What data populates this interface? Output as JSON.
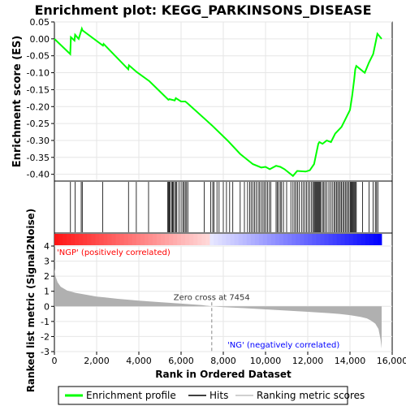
{
  "chart_data": {
    "type": "line",
    "title": "Enrichment plot: KEGG_PARKINSONS_DISEASE",
    "es_panel": {
      "ylabel": "Enrichment score (ES)",
      "ylim": [
        -0.42,
        0.05
      ],
      "yticks": [
        "0.05",
        "0.00",
        "-0.05",
        "-0.10",
        "-0.15",
        "-0.20",
        "-0.25",
        "-0.30",
        "-0.35",
        "-0.40"
      ],
      "ytick_values": [
        0.05,
        0.0,
        -0.05,
        -0.1,
        -0.15,
        -0.2,
        -0.25,
        -0.3,
        -0.35,
        -0.4
      ],
      "series": [
        {
          "name": "Enrichment profile",
          "color": "#00ff00",
          "x": [
            0,
            750,
            780,
            950,
            980,
            1150,
            1300,
            1330,
            2300,
            2330,
            3500,
            3530,
            3900,
            4500,
            5400,
            5450,
            5700,
            5750,
            6000,
            6200,
            6300,
            7454,
            8200,
            8800,
            9200,
            9400,
            9800,
            10000,
            10200,
            10500,
            10700,
            10900,
            11300,
            11500,
            11900,
            12100,
            12300,
            12400,
            12500,
            12550,
            12700,
            12900,
            13100,
            13300,
            13600,
            13800,
            14000,
            14100,
            14200,
            14250,
            14300,
            14700,
            14900,
            15100,
            15300,
            15500
          ],
          "y": [
            0.0,
            -0.045,
            0.005,
            -0.005,
            0.012,
            0.0,
            0.03,
            0.025,
            -0.02,
            -0.015,
            -0.09,
            -0.078,
            -0.098,
            -0.125,
            -0.18,
            -0.178,
            -0.182,
            -0.175,
            -0.185,
            -0.185,
            -0.19,
            -0.255,
            -0.3,
            -0.34,
            -0.36,
            -0.37,
            -0.38,
            -0.378,
            -0.385,
            -0.375,
            -0.378,
            -0.385,
            -0.405,
            -0.39,
            -0.392,
            -0.388,
            -0.37,
            -0.34,
            -0.31,
            -0.305,
            -0.31,
            -0.3,
            -0.305,
            -0.28,
            -0.26,
            -0.235,
            -0.21,
            -0.17,
            -0.12,
            -0.09,
            -0.08,
            -0.1,
            -0.07,
            -0.045,
            0.015,
            0.0
          ]
        }
      ]
    },
    "hits_panel": {
      "series_name": "Hits",
      "hit_ranks": [
        760,
        980,
        1270,
        1320,
        2290,
        3510,
        3880,
        4460,
        5360,
        5400,
        5440,
        5480,
        5560,
        5600,
        5640,
        5700,
        5760,
        5800,
        5900,
        6000,
        6080,
        6140,
        6200,
        6260,
        6320,
        7100,
        7400,
        7500,
        7560,
        7700,
        7800,
        8000,
        8150,
        8300,
        8450,
        8800,
        9000,
        9150,
        9250,
        9320,
        9400,
        9480,
        9560,
        9650,
        9720,
        9800,
        9880,
        9950,
        10020,
        10100,
        10180,
        10250,
        10500,
        10560,
        10620,
        10700,
        10760,
        10850,
        11000,
        11200,
        11300,
        11380,
        11450,
        11520,
        11600,
        11700,
        11780,
        11860,
        11940,
        12020,
        12100,
        12180,
        12240,
        12300,
        12340,
        12380,
        12420,
        12460,
        12500,
        12540,
        12580,
        12620,
        12700,
        12760,
        12820,
        12900,
        13000,
        13080,
        13160,
        13240,
        13300,
        13360,
        13420,
        13480,
        13540,
        13600,
        13660,
        13720,
        13780,
        13840,
        13900,
        13960,
        14020,
        14060,
        14100,
        14140,
        14180,
        14220,
        14260,
        14300,
        14600,
        14900,
        15100,
        15200,
        15260,
        15320
      ]
    },
    "rank_metric_panel": {
      "ylabel": "Ranked list metric (Signal2Noise)",
      "xlabel": "Rank in Ordered Dataset",
      "series_name": "Ranking metric scores",
      "ylim": [
        -3.0,
        4.0
      ],
      "yticks": [
        "4",
        "3",
        "2",
        "1",
        "0",
        "-1",
        "-2",
        "-3"
      ],
      "ytick_values": [
        4,
        3,
        2,
        1,
        0,
        -1,
        -2,
        -3
      ],
      "xlim": [
        0,
        15500
      ],
      "xticks": [
        "0",
        "2,000",
        "4,000",
        "6,000",
        "8,000",
        "10,000",
        "12,000",
        "14,000",
        "16,000"
      ],
      "xtick_values": [
        0,
        2000,
        4000,
        6000,
        8000,
        10000,
        12000,
        14000,
        16000
      ],
      "metric_x": [
        0,
        50,
        150,
        300,
        600,
        1000,
        2000,
        3000,
        4000,
        5000,
        6000,
        7000,
        7454,
        8000,
        9000,
        10000,
        11000,
        12000,
        13000,
        13500,
        14000,
        14500,
        14800,
        15000,
        15200,
        15350,
        15450,
        15500
      ],
      "metric_y": [
        2.5,
        2.0,
        1.6,
        1.3,
        1.05,
        0.9,
        0.65,
        0.5,
        0.38,
        0.28,
        0.18,
        0.08,
        0.0,
        -0.05,
        -0.12,
        -0.2,
        -0.28,
        -0.36,
        -0.45,
        -0.5,
        -0.58,
        -0.7,
        -0.8,
        -0.95,
        -1.15,
        -1.5,
        -2.2,
        -2.8
      ],
      "zero_cross_label": "Zero cross at 7454",
      "zero_cross": 7454,
      "pos_label": "'NGP' (positively correlated)",
      "neg_label": "'NG' (negatively correlated)",
      "pos_color": "#ff0000",
      "neg_color": "#0000ff"
    },
    "legend": {
      "placement": "bottom",
      "entries": [
        "Enrichment profile",
        "Hits",
        "Ranking metric scores"
      ]
    },
    "grid": true
  }
}
